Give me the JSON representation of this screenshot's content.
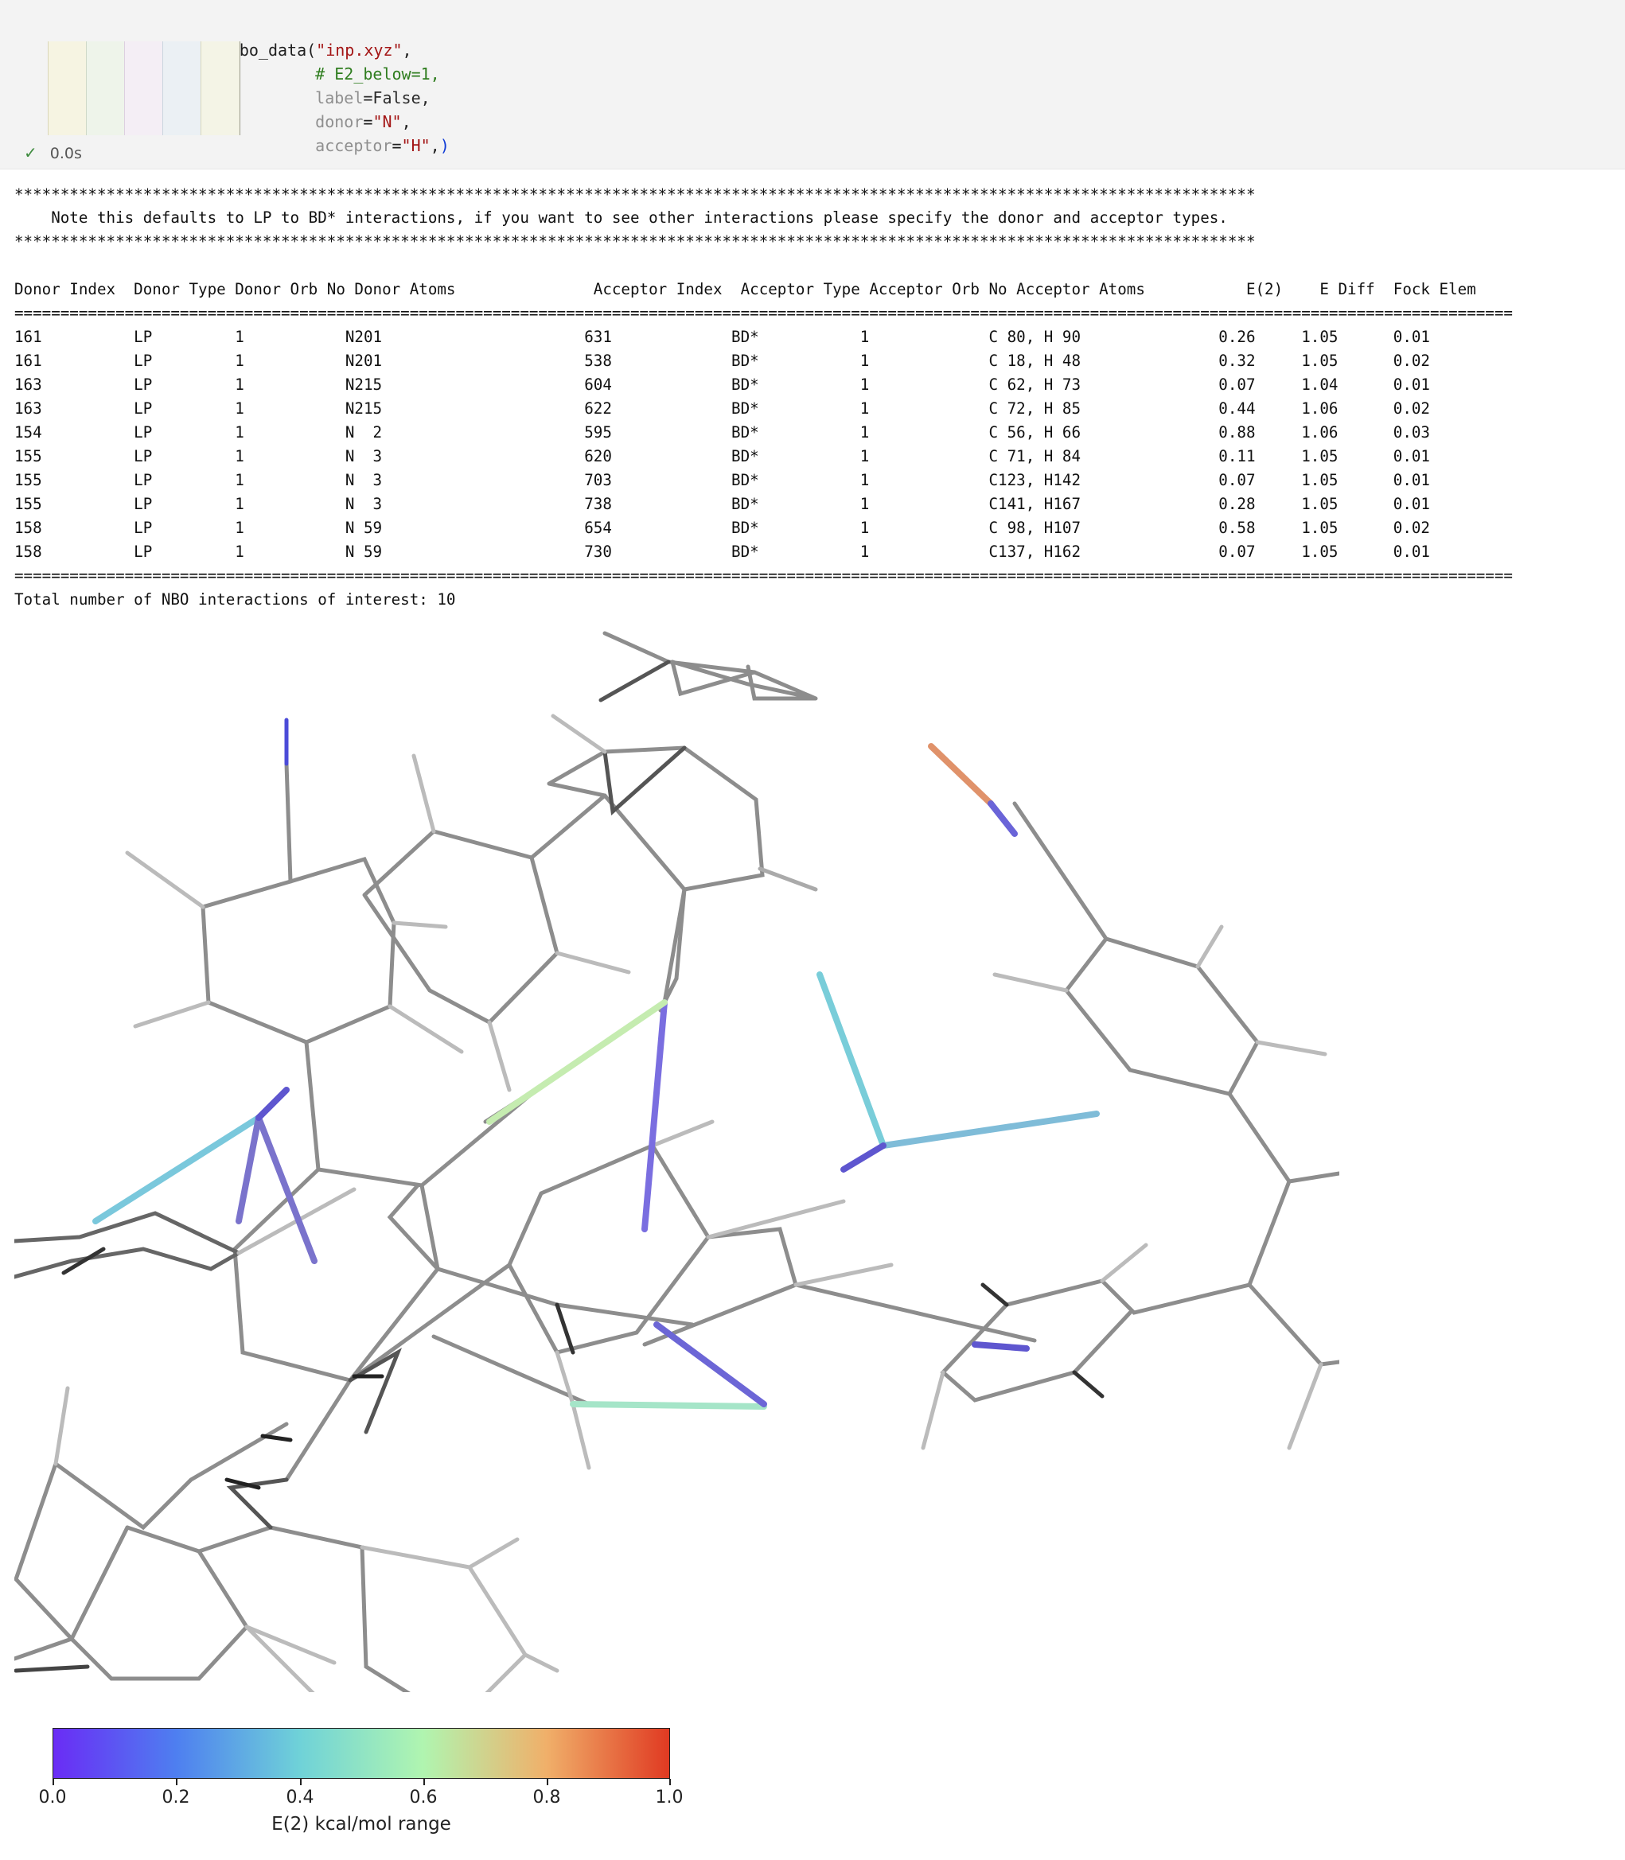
{
  "code": {
    "line1_fn": "test.visualise_nbo_data(",
    "line1_arg": "\"inp.xyz\"",
    "line1_end": ",",
    "line2_comment": "# E2_below=1,",
    "line3_key": "label",
    "line3_val": "=False,",
    "line4_key": "donor",
    "line4_eq": "=",
    "line4_val": "\"N\"",
    "line4_end": ",",
    "line5_key": "acceptor",
    "line5_eq": "=",
    "line5_val": "\"H\"",
    "line5_end": ",",
    "line5_close": ")"
  },
  "status": {
    "check": "✓",
    "time": "0.0s"
  },
  "output": {
    "stars": "***************************************************************************************************************************************",
    "note": "    Note this defaults to LP to BD* interactions, if you want to see other interactions please specify the donor and acceptor types.",
    "header": "Donor Index  Donor Type Donor Orb No Donor Atoms               Acceptor Index  Acceptor Type Acceptor Orb No Acceptor Atoms           E(2)    E Diff  Fock Elem",
    "rule": "===================================================================================================================================================================",
    "rows": [
      "161          LP         1           N201                      631             BD*           1             C 80, H 90               0.26     1.05      0.01",
      "161          LP         1           N201                      538             BD*           1             C 18, H 48               0.32     1.05      0.02",
      "163          LP         1           N215                      604             BD*           1             C 62, H 73               0.07     1.04      0.01",
      "163          LP         1           N215                      622             BD*           1             C 72, H 85               0.44     1.06      0.02",
      "154          LP         1           N  2                      595             BD*           1             C 56, H 66               0.88     1.06      0.03",
      "155          LP         1           N  3                      620             BD*           1             C 71, H 84               0.11     1.05      0.01",
      "155          LP         1           N  3                      703             BD*           1             C123, H142               0.07     1.05      0.01",
      "155          LP         1           N  3                      738             BD*           1             C141, H167               0.28     1.05      0.01",
      "158          LP         1           N 59                      654             BD*           1             C 98, H107               0.58     1.05      0.02",
      "158          LP         1           N 59                      730             BD*           1             C137, H162               0.07     1.05      0.01"
    ],
    "total": "Total number of NBO interactions of interest: 10"
  },
  "colorbar": {
    "ticks": [
      "0.0",
      "0.2",
      "0.4",
      "0.6",
      "0.8",
      "1.0"
    ],
    "label": "E(2) kcal/mol range",
    "colors": [
      "#6a2cf5",
      "#4e7ff0",
      "#6fd2d8",
      "#b0f5b0",
      "#f0b06a",
      "#e03a22"
    ]
  }
}
